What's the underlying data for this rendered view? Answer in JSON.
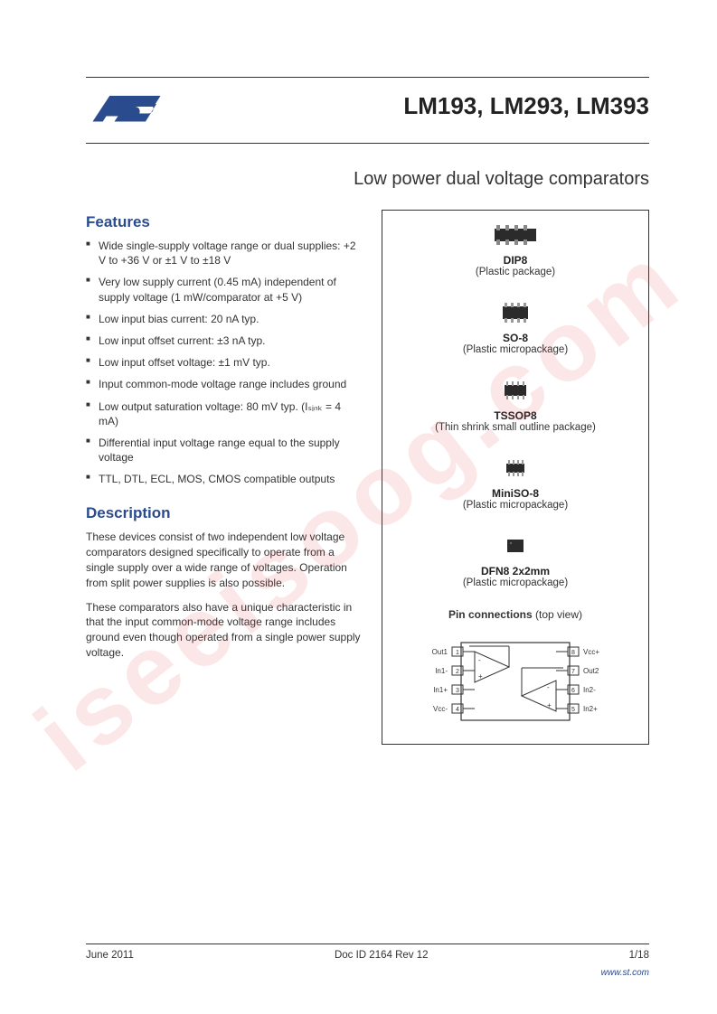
{
  "brand_accent": "#2a4b8d",
  "header": {
    "part_number": "LM193, LM293, LM393",
    "subtitle": "Low power dual voltage comparators"
  },
  "features": {
    "heading": "Features",
    "items": [
      "Wide single-supply voltage range or dual supplies: +2 V to +36 V or ±1 V to ±18 V",
      "Very low supply current (0.45 mA) independent of supply voltage (1 mW/comparator at +5 V)",
      "Low input bias current: 20 nA typ.",
      "Low input offset current: ±3 nA typ.",
      "Low input offset voltage: ±1 mV typ.",
      "Input common-mode voltage range includes ground",
      "Low output saturation voltage: 80 mV typ. (Iₛᵢₙₖ = 4 mA)",
      "Differential input voltage range equal to the supply voltage",
      "TTL, DTL, ECL, MOS, CMOS compatible outputs"
    ]
  },
  "description": {
    "heading": "Description",
    "paragraphs": [
      "These devices consist of two independent low voltage comparators designed specifically to operate from a single supply over a wide range of voltages. Operation from split power supplies is also possible.",
      "These comparators also have a unique characteristic in that the input common-mode voltage range includes ground even though operated from a single power supply voltage."
    ]
  },
  "packages": [
    {
      "name": "DIP8",
      "sub": "(Plastic package)",
      "shape": "dip"
    },
    {
      "name": "SO-8",
      "sub": "(Plastic micropackage)",
      "shape": "so"
    },
    {
      "name": "TSSOP8",
      "sub": "(Thin shrink small outline package)",
      "shape": "tssop"
    },
    {
      "name": "MiniSO-8",
      "sub": "(Plastic micropackage)",
      "shape": "miniso"
    },
    {
      "name": "DFN8 2x2mm",
      "sub": "(Plastic micropackage)",
      "shape": "dfn"
    }
  ],
  "pinout": {
    "title_bold": "Pin connections",
    "title_rest": " (top view)",
    "left_pins": [
      "Out1",
      "In1-",
      "In1+",
      "Vcc-"
    ],
    "right_pins": [
      "Vcc+",
      "Out2",
      "In2-",
      "In2+"
    ],
    "left_nums": [
      "1",
      "2",
      "3",
      "4"
    ],
    "right_nums": [
      "8",
      "7",
      "6",
      "5"
    ]
  },
  "footer": {
    "date": "June 2011",
    "doc": "Doc ID 2164 Rev 12",
    "page": "1/18",
    "url": "www.st.com"
  },
  "watermark": "iseeisoog.com"
}
